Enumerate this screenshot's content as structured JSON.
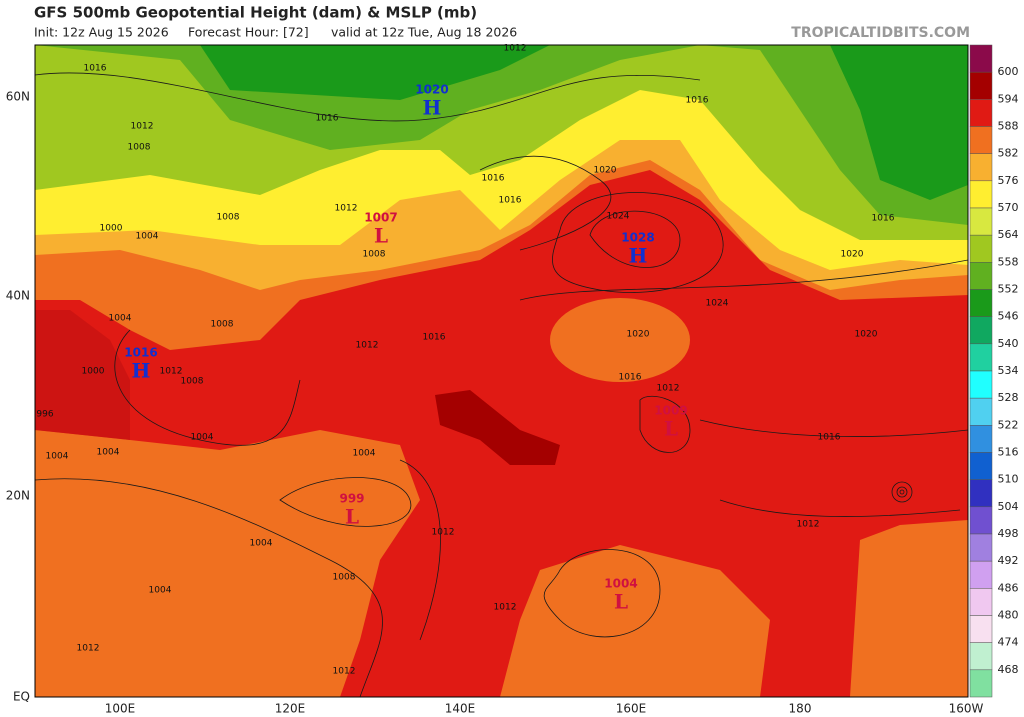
{
  "header": {
    "title": "GFS 500mb Geopotential Height (dam) & MSLP (mb)",
    "init": "Init: 12z Aug 15 2026",
    "forecast_hour": "Forecast Hour: [72]",
    "valid": "valid at 12z Tue, Aug 18 2026",
    "credit": "TROPICALTIDBITS.COM"
  },
  "map": {
    "lat_labels": [
      "60N",
      "40N",
      "20N",
      "EQ"
    ],
    "lon_labels": [
      "100E",
      "120E",
      "140E",
      "160E",
      "180",
      "160W"
    ],
    "centers": [
      {
        "type": "H",
        "value": "1020"
      },
      {
        "type": "L",
        "value": "1007"
      },
      {
        "type": "H",
        "value": "1028"
      },
      {
        "type": "H",
        "value": "1016"
      },
      {
        "type": "L",
        "value": "1009"
      },
      {
        "type": "L",
        "value": "999"
      },
      {
        "type": "L",
        "value": "1004"
      }
    ],
    "isobar_labels": [
      "1016",
      "1012",
      "1016",
      "1012",
      "1008",
      "1016",
      "1016",
      "1016",
      "1012",
      "1008",
      "1000",
      "1004",
      "1008",
      "1020",
      "1024",
      "1020",
      "1016",
      "1024",
      "1020",
      "1020",
      "1016",
      "1012",
      "1016",
      "1012",
      "1016",
      "1004",
      "1008",
      "1012",
      "1008",
      "1000",
      "996",
      "1004",
      "1004",
      "1004",
      "1004",
      "1012",
      "1012",
      "1012",
      "1004",
      "1008",
      "1004",
      "1012",
      "1012"
    ]
  },
  "colorbar": {
    "labels": [
      600,
      594,
      588,
      582,
      576,
      570,
      564,
      558,
      552,
      546,
      540,
      534,
      528,
      522,
      516,
      510,
      504,
      498,
      492,
      486,
      480,
      474,
      468
    ],
    "colors": [
      "#8b0a4a",
      "#a40000",
      "#e01a14",
      "#f07020",
      "#f8b030",
      "#ffee30",
      "#d8e840",
      "#a0c820",
      "#60b020",
      "#1a9a1a",
      "#10a860",
      "#20d0a0",
      "#20ffff",
      "#50d0f0",
      "#3090e0",
      "#1060d0",
      "#3030c0",
      "#7050d0",
      "#a080e0",
      "#d0a0f0",
      "#f0c8f0",
      "#f8e0f0",
      "#c0f0d0",
      "#80e0a0"
    ]
  }
}
